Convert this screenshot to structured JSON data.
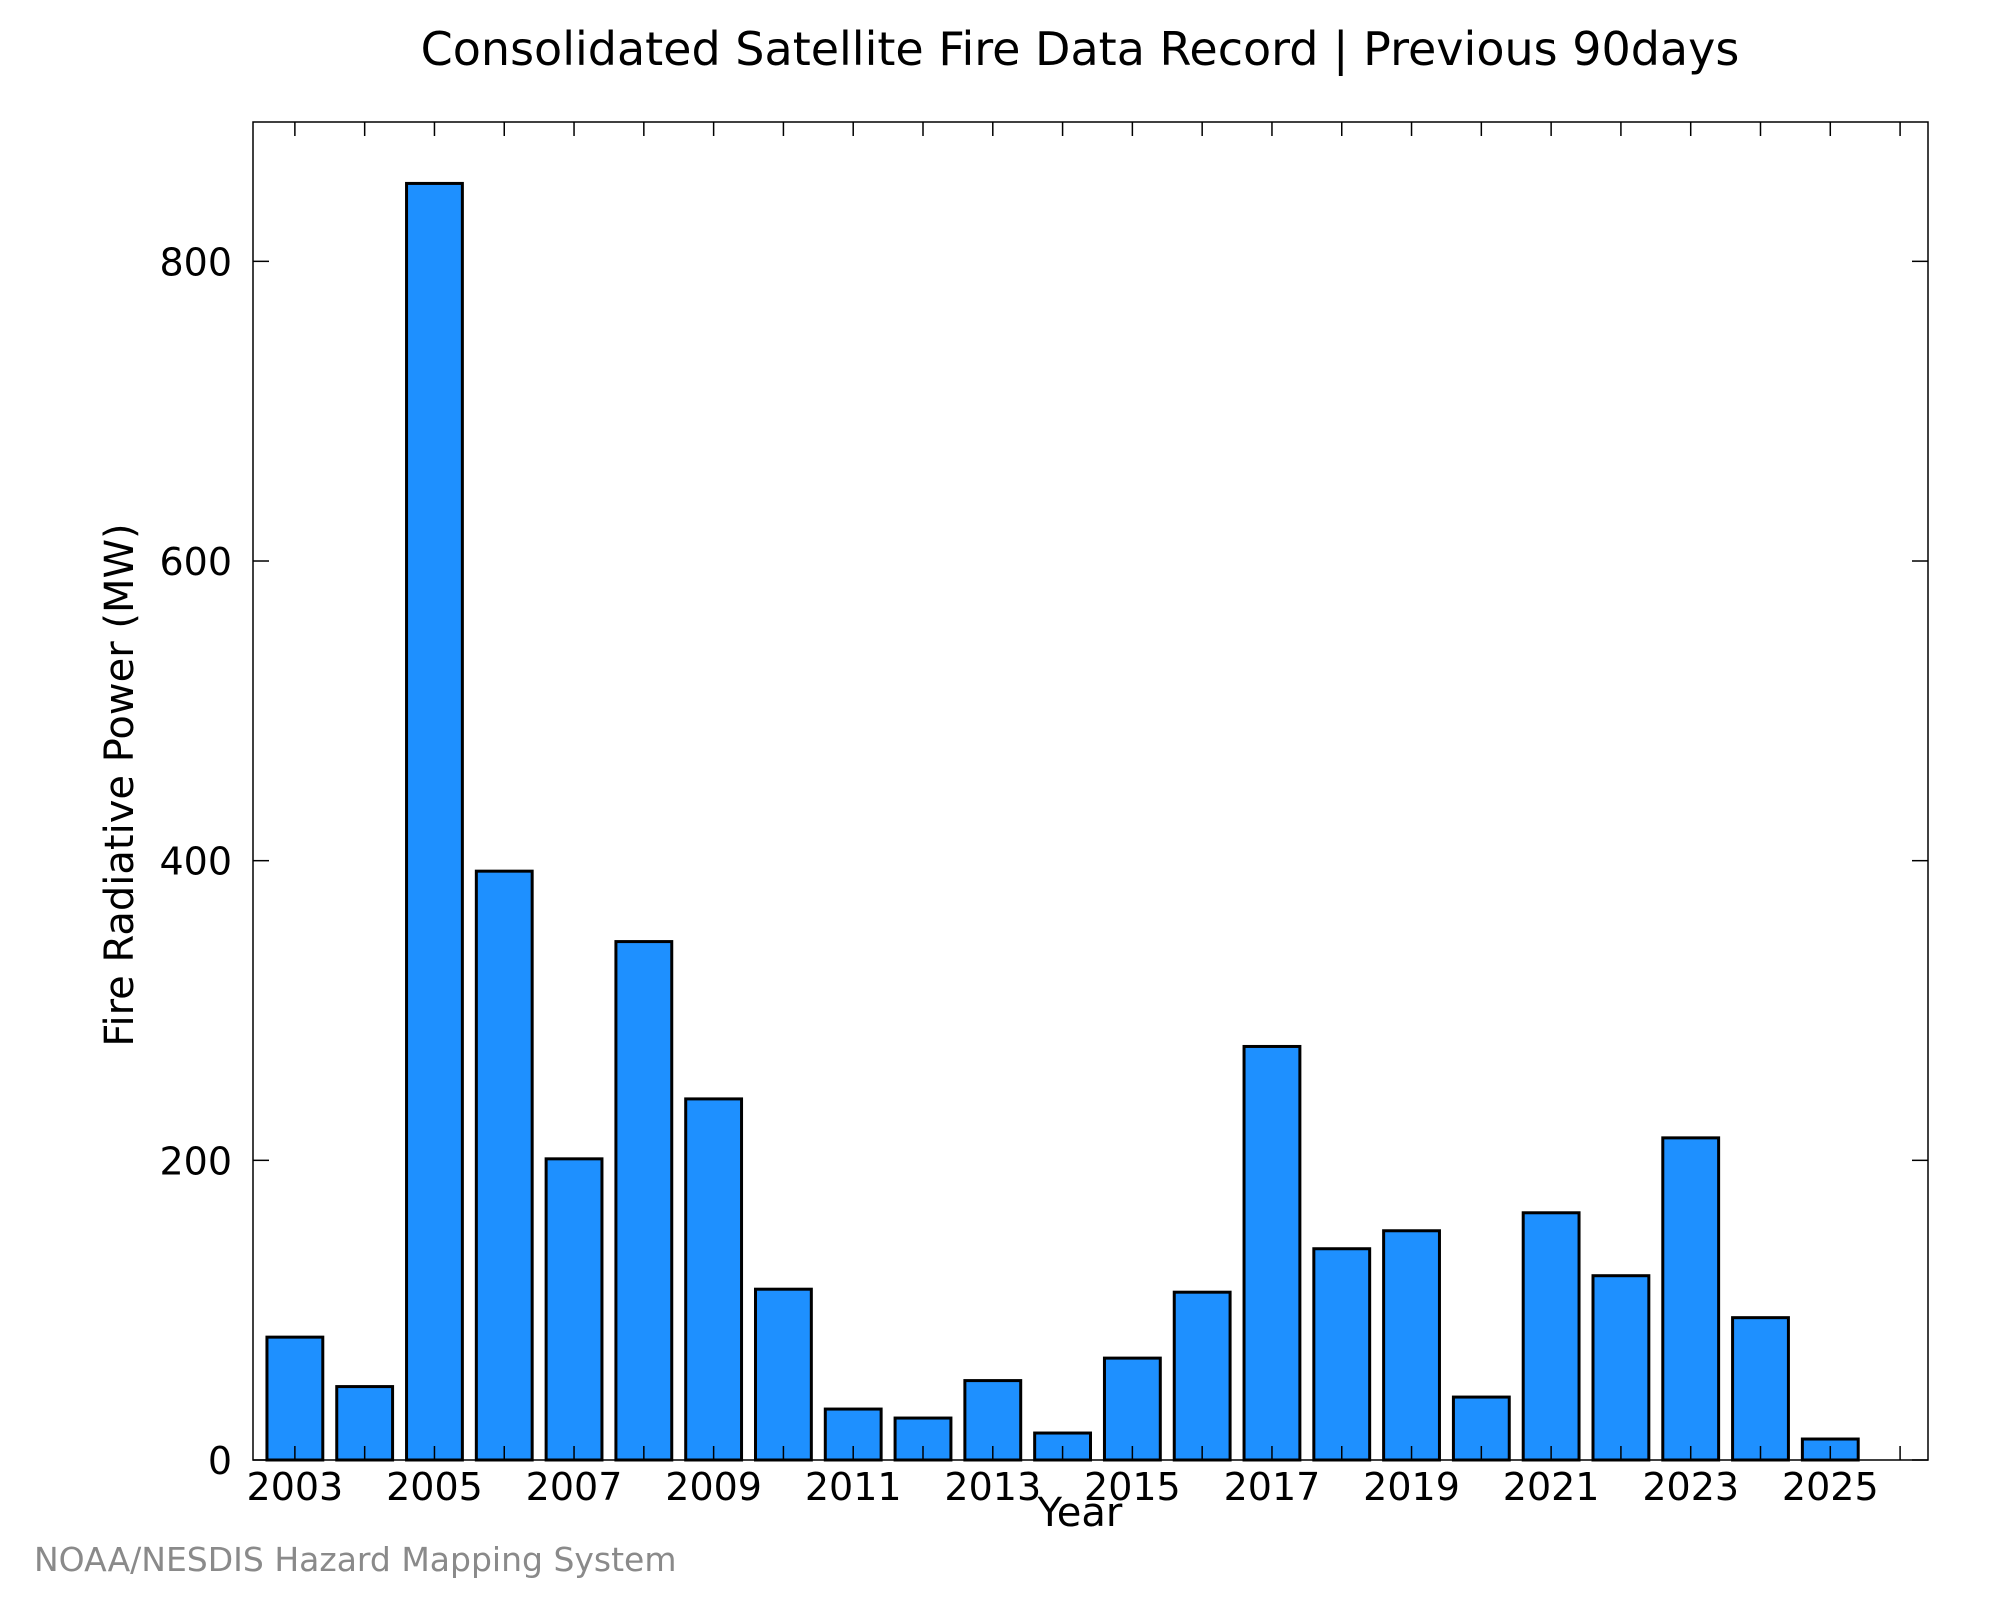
{
  "chart_data": {
    "type": "bar",
    "title": "Consolidated Satellite Fire Data Record | Previous 90days",
    "xlabel": "Year",
    "ylabel": "Fire Radiative Power (MW)",
    "categories": [
      2003,
      2004,
      2005,
      2006,
      2007,
      2008,
      2009,
      2010,
      2011,
      2012,
      2013,
      2014,
      2015,
      2016,
      2017,
      2018,
      2019,
      2020,
      2021,
      2022,
      2023,
      2024,
      2025
    ],
    "values": [
      82,
      49,
      852,
      393,
      201,
      346,
      241,
      114,
      34,
      28,
      53,
      18,
      68,
      112,
      276,
      141,
      153,
      42,
      165,
      123,
      215,
      95,
      14
    ],
    "xticks": [
      "2003",
      "2005",
      "2007",
      "2009",
      "2011",
      "2013",
      "2015",
      "2017",
      "2019",
      "2021",
      "2023",
      "2025"
    ],
    "yticks": [
      "0",
      "200",
      "400",
      "600",
      "800"
    ],
    "ylim": [
      0,
      893
    ],
    "xlim": [
      2002.4,
      2026.4
    ],
    "bar_color": "#1e90ff",
    "bar_edge_color": "#000000",
    "grid": false
  },
  "credit": "NOAA/NESDIS Hazard Mapping System"
}
